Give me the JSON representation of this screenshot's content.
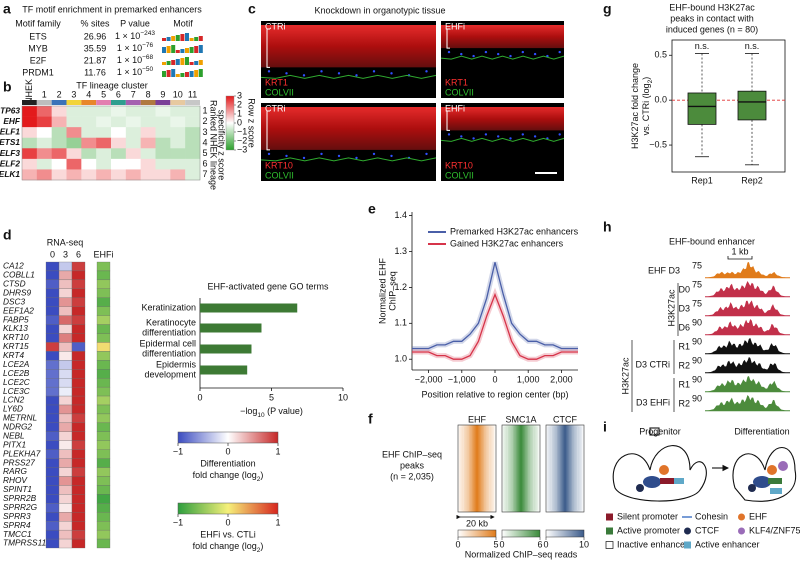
{
  "a": {
    "letter": "a",
    "title": "TF motif enrichment in premarked enhancers",
    "headers": [
      "Motif family",
      "% sites",
      "P value",
      "Motif"
    ],
    "rows": [
      {
        "family": "ETS",
        "sites": 26.96,
        "p": [
          "1 × 10",
          "−243"
        ]
      },
      {
        "family": "MYB",
        "sites": 35.59,
        "p": [
          "1 × 10",
          "−76"
        ]
      },
      {
        "family": "E2F",
        "sites": 21.87,
        "p": [
          "1 × 10",
          "−68"
        ]
      },
      {
        "family": "PRDM1",
        "sites": 11.76,
        "p": [
          "1 × 10",
          "−50"
        ]
      }
    ]
  },
  "b": {
    "letter": "b",
    "title": "TF lineage cluster",
    "nhek": "NHEK",
    "nhek_color": "#222222",
    "clusters": [
      1,
      2,
      3,
      4,
      5,
      6,
      7,
      8,
      9,
      10,
      11
    ],
    "cluster_colors": [
      "#bdbdbd",
      "#3b73b9",
      "#f2d43a",
      "#e8862a",
      "#e37eb0",
      "#2f9e8f",
      "#a55fb0",
      "#b0793f",
      "#7b3f98",
      "#e7c9a0",
      "#c7c7c7"
    ],
    "genes": [
      "TP63",
      "EHF",
      "ELF1",
      "ETS1",
      "ELF3",
      "ELF2",
      "ELK1"
    ],
    "ranks": [
      1,
      2,
      3,
      4,
      5,
      6,
      7
    ],
    "rank_label": [
      "Ranked NHEK lineage",
      "specificity z score"
    ],
    "colorbar_label": "Row z score",
    "colorbar_ticks": [
      3,
      2,
      1,
      0,
      {
        "value": -1,
        "label": "−1"
      },
      {
        "value": -2,
        "label": "−2"
      },
      {
        "value": -3,
        "label": "−3"
      }
    ],
    "zlim": [
      -3,
      3
    ],
    "colors": [
      "#2ca02c",
      "#ffffff",
      "#e31a1c"
    ],
    "values": [
      [
        3,
        2,
        0.5,
        -0.5,
        -0.5,
        -0.5,
        -0.3,
        -0.5,
        -0.5,
        -0.3,
        -0.5,
        -0.5
      ],
      [
        3,
        2.5,
        1,
        -0.5,
        -0.5,
        -0.3,
        -0.5,
        -0.3,
        -0.5,
        -0.5,
        -0.3,
        -0.5
      ],
      [
        0.5,
        0,
        -1,
        1.5,
        -0.5,
        -0.5,
        0,
        -0.5,
        0.5,
        -0.5,
        -0.5,
        -1
      ],
      [
        -1,
        -0.5,
        -1,
        -1.5,
        1.5,
        2,
        0.5,
        -0.5,
        1,
        -1,
        -0.5,
        -1
      ],
      [
        2.5,
        1.5,
        2,
        0.5,
        -1,
        -0.5,
        -1,
        0.5,
        -0.5,
        -1,
        -1,
        -1
      ],
      [
        0.5,
        -0.5,
        0,
        2,
        0,
        -0.5,
        0,
        0,
        0.5,
        -0.5,
        -0.5,
        -0.5
      ],
      [
        1,
        1.5,
        0.5,
        1,
        0.5,
        1,
        0.5,
        1,
        0.5,
        0.5,
        1,
        -0.5
      ]
    ]
  },
  "c": {
    "letter": "c",
    "title": "Knockdown in organotypic tissue",
    "images": [
      {
        "condition": "CTRi",
        "marker": "KRT1",
        "counter": "COLVII"
      },
      {
        "condition": "EHFi",
        "marker": "KRT1",
        "counter": "COLVII"
      },
      {
        "condition": "CTRi",
        "marker": "KRT10",
        "counter": "COLVII"
      },
      {
        "condition": "EHFi",
        "marker": "KRT10",
        "counter": "COLVII"
      }
    ]
  },
  "d": {
    "letter": "d",
    "heatmap_title": "RNA-seq",
    "timepoints": [
      0,
      3,
      6
    ],
    "ehfi": "EHFi",
    "genes": [
      "CA12",
      "COBLL1",
      "CTSD",
      "DHRS9",
      "DSC3",
      "EEF1A2",
      "FABP5",
      "KLK13",
      "KRT10",
      "KRT15",
      "KRT4",
      "LCE2A",
      "LCE2B",
      "LCE2C",
      "LCE3C",
      "LCN2",
      "LY6D",
      "METRNL",
      "NDRG2",
      "NEBL",
      "PITX1",
      "PLEKHA7",
      "PRSS27",
      "RARG",
      "RHOV",
      "SPINT1",
      "SPRR2B",
      "SPRR2G",
      "SPRR3",
      "SPRR4",
      "TMCC1",
      "TMPRSS11E"
    ],
    "diff": [
      [
        -1,
        -0.3,
        0.9
      ],
      [
        -1,
        0.4,
        1
      ],
      [
        -0.9,
        0.3,
        0.9
      ],
      [
        -1,
        0.2,
        1
      ],
      [
        -1,
        0.5,
        0.9
      ],
      [
        -1,
        0.3,
        1
      ],
      [
        -0.9,
        0.7,
        0.9
      ],
      [
        -1,
        0.2,
        1
      ],
      [
        -1,
        0.6,
        1
      ],
      [
        0.9,
        0.3,
        -0.9
      ],
      [
        -1,
        0.1,
        1
      ],
      [
        -0.8,
        -0.3,
        1
      ],
      [
        -0.8,
        -0.2,
        1
      ],
      [
        -0.8,
        -0.2,
        1
      ],
      [
        -0.8,
        -0.1,
        1
      ],
      [
        -1,
        0.2,
        1
      ],
      [
        -1,
        0.5,
        1
      ],
      [
        -1,
        0.3,
        0.9
      ],
      [
        -1,
        0.4,
        1
      ],
      [
        -0.9,
        0.2,
        1
      ],
      [
        -1,
        0.1,
        0.9
      ],
      [
        -0.9,
        0.3,
        1
      ],
      [
        -1,
        0.4,
        1
      ],
      [
        -1,
        0.2,
        0.9
      ],
      [
        -1,
        0.5,
        1
      ],
      [
        -1,
        0.3,
        1
      ],
      [
        -1,
        0.2,
        1
      ],
      [
        -0.9,
        0.1,
        1
      ],
      [
        -1,
        0.4,
        1
      ],
      [
        -0.9,
        0.2,
        1
      ],
      [
        -1,
        0.3,
        0.9
      ],
      [
        -1,
        0.2,
        1
      ]
    ],
    "ehfi_values": [
      -0.6,
      -0.7,
      -0.5,
      -0.6,
      -0.8,
      -0.6,
      -0.4,
      -0.7,
      -0.6,
      0.1,
      -0.5,
      -0.7,
      -0.8,
      -0.7,
      -0.6,
      -0.4,
      -0.6,
      -0.5,
      -0.7,
      -0.6,
      -0.5,
      -0.6,
      -0.8,
      -0.5,
      -0.6,
      -0.7,
      -0.9,
      -0.8,
      -0.7,
      -0.6,
      -0.5,
      -0.7
    ],
    "diff_lim": [
      -1,
      1
    ],
    "diff_colors": [
      "#3b4cc0",
      "#ffffff",
      "#c62828"
    ],
    "ehfi_colors": [
      "#2e9e3e",
      "#f5f07a",
      "#d7261e"
    ],
    "go": {
      "type": "bar",
      "title": "EHF-activated gene GO terms",
      "categories": [
        [
          "Keratinization"
        ],
        [
          "Keratinocyte",
          "differentiation"
        ],
        [
          "Epidermal cell",
          "differentiation"
        ],
        [
          "Epidermis",
          "development"
        ]
      ],
      "values": [
        6.8,
        4.3,
        3.6,
        3.3
      ],
      "color": "#3d7a34",
      "xlim": [
        0,
        10
      ],
      "xticks": [
        0,
        5,
        10
      ],
      "xlabel": [
        "−log",
        "10",
        " (P value)"
      ]
    },
    "diff_scale": {
      "title": "Differentiation",
      "label": [
        "fold change (log",
        "2",
        ")"
      ],
      "ticks": [
        {
          "value": -1,
          "label": "−1"
        },
        0,
        1
      ]
    },
    "ehfi_scale": {
      "title": "EHFi vs. CTLi",
      "label": [
        "fold change (log",
        "2",
        ")"
      ],
      "ticks": [
        {
          "value": -1,
          "label": "−1"
        },
        0,
        1
      ]
    }
  },
  "e": {
    "letter": "e",
    "type": "line",
    "x": [
      -2500,
      -2250,
      -2000,
      -1750,
      -1500,
      -1250,
      -1000,
      -750,
      -500,
      -250,
      0,
      250,
      500,
      750,
      1000,
      1250,
      1500,
      1750,
      2000,
      2250,
      2500
    ],
    "series": [
      {
        "name": "Premarked H3K27ac enhancers",
        "color": "#4a5fa8",
        "values": [
          1.03,
          1.03,
          1.03,
          1.04,
          1.04,
          1.05,
          1.05,
          1.07,
          1.1,
          1.17,
          1.27,
          1.18,
          1.1,
          1.07,
          1.05,
          1.05,
          1.04,
          1.04,
          1.03,
          1.03,
          1.03
        ]
      },
      {
        "name": "Gained H3K27ac enhancers",
        "color": "#d6344a",
        "values": [
          1.02,
          1.02,
          1.02,
          1.01,
          1.01,
          1.0,
          1.0,
          1.01,
          1.05,
          1.12,
          1.18,
          1.12,
          1.05,
          1.01,
          1.0,
          1.0,
          1.01,
          1.01,
          1.02,
          1.02,
          1.02
        ]
      }
    ],
    "xlim": [
      -2500,
      2500
    ],
    "xticks": [
      {
        "value": -2000,
        "label": "−2,000"
      },
      {
        "value": -1000,
        "label": "−1,000"
      },
      0,
      {
        "value": 1000,
        "label": "1,000"
      },
      {
        "value": 2000,
        "label": "2,000"
      }
    ],
    "ylim": [
      0.97,
      1.41
    ],
    "yticks": [
      {
        "value": 1.0,
        "label": "1.0"
      },
      1.1,
      1.2,
      1.3,
      1.4
    ],
    "ylabel": [
      "Normalized EHF",
      "ChIP–seq"
    ],
    "xlabel": "Position relative to region center (bp)"
  },
  "f": {
    "letter": "f",
    "row_label": [
      "EHF ChIP–seq",
      "peaks",
      "(n = 2,035)"
    ],
    "tracks": [
      {
        "name": "EHF",
        "color": "#e07b1a",
        "ticks": [
          0,
          5
        ]
      },
      {
        "name": "SMC1A",
        "color": "#3a8a3a",
        "ticks": [
          0,
          6
        ]
      },
      {
        "name": "CTCF",
        "color": "#3b5b8a",
        "ticks": [
          0,
          10
        ]
      }
    ],
    "width_label": "20 kb",
    "scale_label": "Normalized ChIP–seq reads"
  },
  "g": {
    "letter": "g",
    "type": "box",
    "title": [
      "EHF-bound H3K27ac",
      "peaks in contact with",
      "induced genes (n = 80)"
    ],
    "categories": [
      "Rep1",
      "Rep2"
    ],
    "boxes": [
      {
        "low": -0.63,
        "q1": -0.27,
        "median": -0.07,
        "q3": 0.08,
        "high": 0.52
      },
      {
        "low": -0.72,
        "q1": -0.22,
        "median": -0.02,
        "q3": 0.1,
        "high": 0.52
      }
    ],
    "annotations": [
      "n.s.",
      "n.s."
    ],
    "color": "#4c8b3c",
    "ylim": [
      -0.8,
      0.67
    ],
    "yticks": [
      0.5,
      {
        "value": 0,
        "label": "0.0"
      },
      {
        "value": -0.5,
        "label": "−0.5"
      }
    ],
    "ylabel": [
      [
        "H3K27ac fold change"
      ],
      [
        "vs. CTRi (log",
        "2",
        ")"
      ]
    ],
    "ref_line": 0,
    "ref_color": "#e03030"
  },
  "h": {
    "letter": "h",
    "title": "EHF-bound enhancer",
    "scale_bar": "1 kb",
    "tracks": [
      {
        "label": "EHF D3",
        "scale": 75,
        "color": "#e07b1a"
      },
      {
        "label": "D0",
        "scale": 75,
        "color": "#c2304a"
      },
      {
        "label": "D3",
        "scale": 75,
        "color": "#c2304a"
      },
      {
        "label": "D6",
        "scale": 90,
        "color": "#c2304a"
      },
      {
        "label": "R1",
        "scale": 90,
        "color": "#111111"
      },
      {
        "label": "R2",
        "scale": 90,
        "color": "#111111"
      },
      {
        "label": "R1",
        "scale": 90,
        "color": "#4c8b3c"
      },
      {
        "label": "R2",
        "scale": 90,
        "color": "#4c8b3c"
      }
    ],
    "groups": [
      "H3K27ac",
      "H3K27ac",
      "D3 CTRi",
      "D3 EHFi"
    ]
  },
  "i": {
    "letter": "i",
    "stages": [
      "Progenitor",
      "Differentiation"
    ],
    "legend": [
      "Silent promoter",
      "Cohesin",
      "EHF",
      "Active promoter",
      "CTCF",
      "KLF4/ZNF750",
      "Inactive enhancer",
      "Active enhancer"
    ]
  }
}
